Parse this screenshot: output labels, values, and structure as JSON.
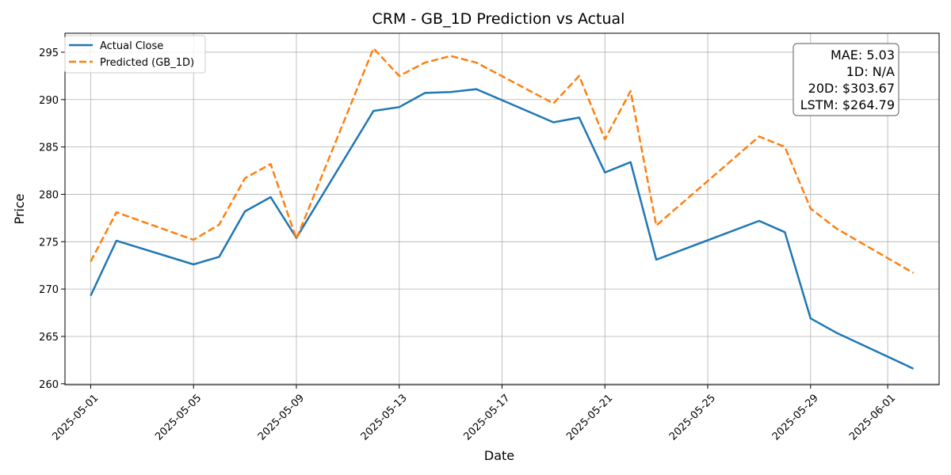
{
  "chart_data": {
    "type": "line",
    "title": "CRM - GB_1D Prediction vs Actual",
    "xlabel": "Date",
    "ylabel": "Price",
    "ylim": [
      259.9,
      297.0
    ],
    "xlim": [
      "2025-04-30",
      "2025-06-03"
    ],
    "grid": true,
    "legend_position": "top-left",
    "x_ticks": [
      "2025-05-01",
      "2025-05-05",
      "2025-05-09",
      "2025-05-13",
      "2025-05-17",
      "2025-05-21",
      "2025-05-25",
      "2025-05-29",
      "2025-06-01"
    ],
    "y_ticks": [
      260,
      265,
      270,
      275,
      280,
      285,
      290,
      295
    ],
    "x": [
      "2025-05-01",
      "2025-05-02",
      "2025-05-05",
      "2025-05-06",
      "2025-05-07",
      "2025-05-08",
      "2025-05-09",
      "2025-05-12",
      "2025-05-13",
      "2025-05-14",
      "2025-05-15",
      "2025-05-16",
      "2025-05-19",
      "2025-05-20",
      "2025-05-21",
      "2025-05-22",
      "2025-05-23",
      "2025-05-27",
      "2025-05-28",
      "2025-05-29",
      "2025-05-30",
      "2025-06-02"
    ],
    "series": [
      {
        "name": "Actual Close",
        "color": "#1f77b4",
        "style": "solid",
        "values": [
          269.3,
          275.1,
          272.6,
          273.4,
          278.2,
          279.7,
          275.4,
          288.8,
          289.2,
          290.7,
          290.8,
          291.1,
          287.6,
          288.1,
          282.3,
          283.4,
          273.1,
          277.2,
          276.0,
          266.9,
          265.4,
          261.6
        ]
      },
      {
        "name": "Predicted (GB_1D)",
        "color": "#ff7f0e",
        "style": "dashed",
        "values": [
          272.9,
          278.1,
          275.2,
          276.8,
          281.7,
          283.2,
          275.3,
          295.4,
          292.5,
          293.9,
          294.6,
          293.9,
          289.6,
          292.5,
          285.8,
          290.9,
          276.7,
          286.1,
          285.0,
          278.5,
          276.4,
          271.7
        ]
      }
    ],
    "stats_box": [
      "MAE: 5.03",
      "1D: N/A",
      "20D: $303.67",
      "LSTM: $264.79"
    ]
  }
}
